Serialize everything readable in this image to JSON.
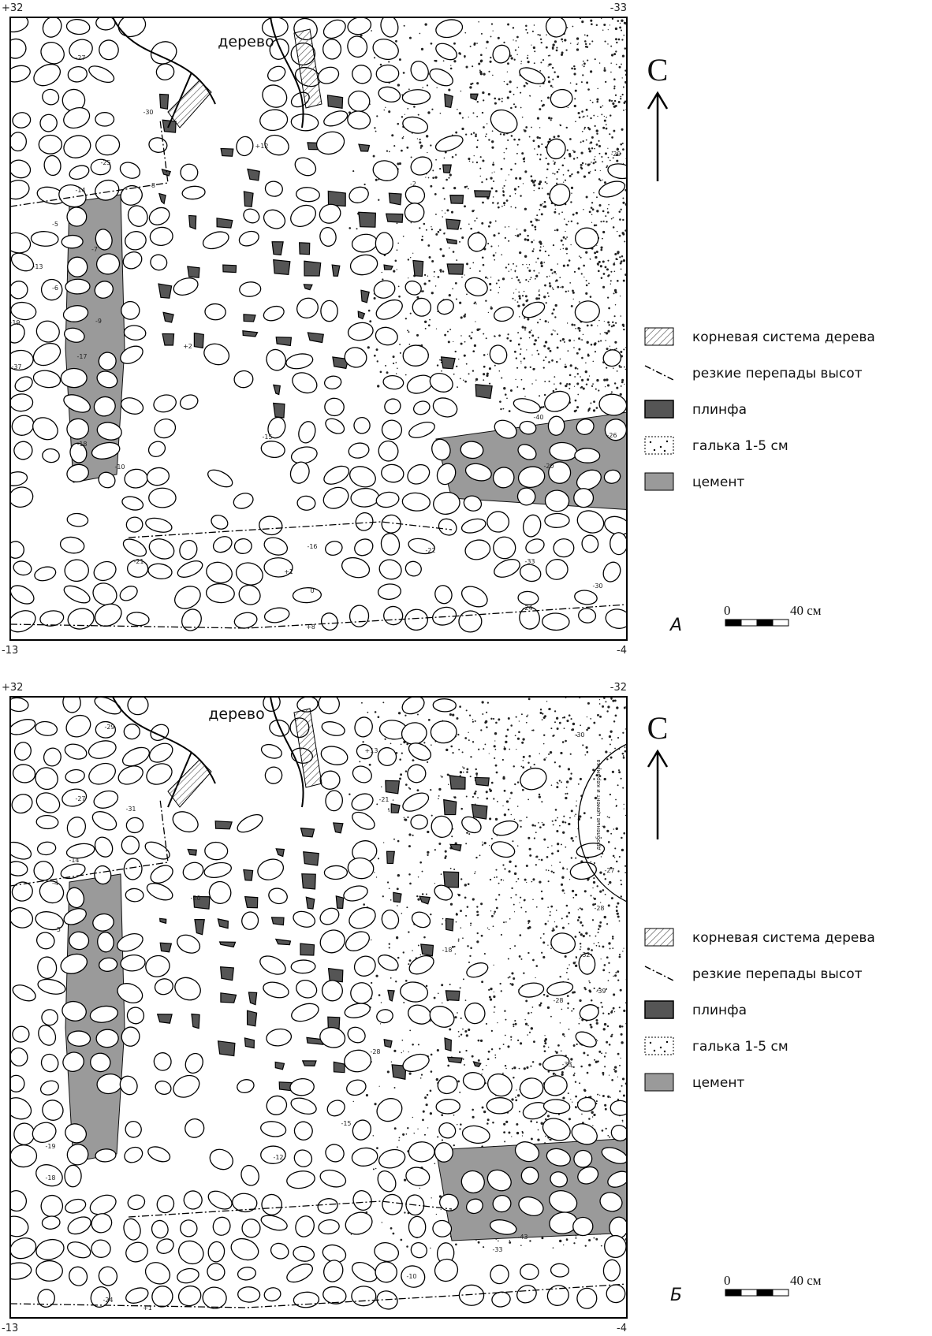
{
  "panels": [
    {
      "corners": {
        "top_left": "+32",
        "top_right": "-33",
        "bottom_left": "-13",
        "bottom_right": "-4"
      },
      "tree_label": "дерево",
      "north": "С",
      "panel_letter": "А",
      "scale": {
        "zero": "0",
        "length": "40 см"
      },
      "legend": [
        "корневая система дерева",
        "резкие перепады высот",
        "плинфа",
        "галька 1-5 см",
        "цемент"
      ],
      "elevations": [
        "-27",
        "-30",
        "-25",
        "-14",
        "-7",
        "-5",
        "-13",
        "-6",
        "-19",
        "-37",
        "-17",
        "-18",
        "-10",
        "+2",
        "+12",
        "-2",
        "-16",
        "-21",
        "-20",
        "-40",
        "-26",
        "-33",
        "+1",
        "0",
        "+8",
        "-22",
        "-15",
        "-29",
        "-24",
        "-30",
        "-8",
        "-9"
      ]
    },
    {
      "corners": {
        "top_left": "+32",
        "top_right": "-32",
        "bottom_left": "-13",
        "bottom_right": "-4"
      },
      "tree_label": "дерево",
      "north": "С",
      "panel_letter": "Б",
      "scale": {
        "zero": "0",
        "length": "40 см"
      },
      "legend": [
        "корневая система дерева",
        "резкие перепады высот",
        "плинфа",
        "галька 1-5 см",
        "цемент"
      ],
      "note": "дробленые цемент и керамика",
      "elevations": [
        "-29",
        "-31",
        "-27",
        "-14",
        "-4",
        "-5",
        "-19",
        "-18",
        "-20",
        "-28",
        "-33",
        "-30",
        "-27",
        "-28",
        "-32",
        "-39",
        "-28",
        "-18",
        "-21",
        "+13",
        "-43",
        "-33",
        "-12",
        "-15",
        "-10",
        "+1",
        "-24"
      ]
    }
  ]
}
